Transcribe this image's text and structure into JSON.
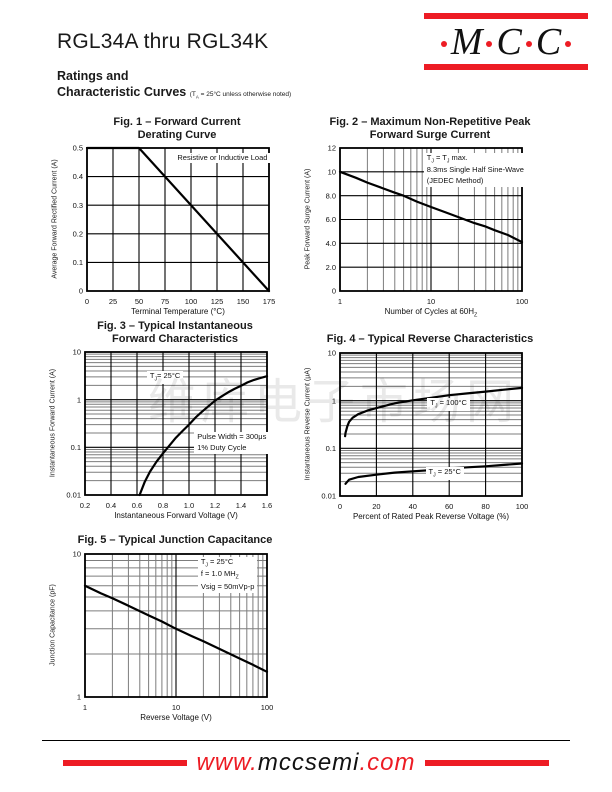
{
  "page": {
    "accent_red": "#ed1c24",
    "watermark": "维库电子市场网"
  },
  "header": {
    "part_range": "RGL34A thru RGL34K",
    "section_line1": "Ratings and",
    "section_line2": "Characteristic Curves",
    "section_note": "(T_A = 25°C unless otherwise noted)",
    "logo_letters": [
      "M",
      "C",
      "C"
    ]
  },
  "footer": {
    "url_www": "www.",
    "url_domain": "mccsemi",
    "url_tld": ".com"
  },
  "chart_data": [
    {
      "id": "fig1-forward-current-derating",
      "type": "line",
      "title_lines": [
        "Fig. 1 – Forward Current",
        "Derating Curve"
      ],
      "xlabel": "Terminal Temperature (°C)",
      "ylabel": "Average Forward Rectified Current (A)",
      "xscale": "linear",
      "yscale": "linear",
      "xlim": [
        0,
        175
      ],
      "ylim": [
        0,
        0.5
      ],
      "xticks": {
        "values": [
          0,
          25,
          50,
          75,
          100,
          125,
          150,
          175
        ],
        "labels": [
          "0",
          "25",
          "50",
          "75",
          "100",
          "125",
          "150",
          "175"
        ]
      },
      "yticks": {
        "values": [
          0,
          0.1,
          0.2,
          0.3,
          0.4,
          0.5
        ],
        "labels": [
          "0",
          "0.1",
          "0.2",
          "0.3",
          "0.4",
          "0.5"
        ]
      },
      "annotations": [
        {
          "lines": [
            "Resistive or Inductive Load"
          ],
          "fx": 0.48,
          "fy": 0.03,
          "align": "left"
        }
      ],
      "series": [
        {
          "name": "derating-curve",
          "points": [
            [
              0,
              0.5
            ],
            [
              50,
              0.5
            ],
            [
              175,
              0
            ]
          ]
        }
      ]
    },
    {
      "id": "fig2-peak-forward-surge-current",
      "type": "line",
      "title_lines": [
        "Fig. 2 – Maximum Non-Repetitive Peak",
        "Forward Surge Current"
      ],
      "xlabel": "Number of Cycles at 60H_Z",
      "ylabel": "Peak Forward Surge Current (A)",
      "xscale": "log",
      "yscale": "linear",
      "xlim": [
        1,
        100
      ],
      "ylim": [
        0,
        12
      ],
      "xticks": {
        "values": [
          1,
          10,
          100
        ],
        "labels": [
          "1",
          "10",
          "100"
        ]
      },
      "yticks": {
        "values": [
          0,
          2,
          4,
          6,
          8,
          10,
          12
        ],
        "labels": [
          "0",
          "2.0",
          "4.0",
          "6.0",
          "8.0",
          "10",
          "12"
        ]
      },
      "annotations": [
        {
          "lines": [
            "T_J = T_J max.",
            "8.3ms Single Half Sine-Wave",
            "(JEDEC Method)"
          ],
          "fx": 0.46,
          "fy": 0.03,
          "align": "left"
        }
      ],
      "series": [
        {
          "name": "surge-current-curve",
          "points": [
            [
              1,
              10
            ],
            [
              1.5,
              9.5
            ],
            [
              2,
              9.1
            ],
            [
              3,
              8.6
            ],
            [
              4,
              8.25
            ],
            [
              5,
              8.0
            ],
            [
              7,
              7.5
            ],
            [
              10,
              7.05
            ],
            [
              15,
              6.55
            ],
            [
              20,
              6.2
            ],
            [
              30,
              5.7
            ],
            [
              40,
              5.4
            ],
            [
              50,
              5.1
            ],
            [
              70,
              4.7
            ],
            [
              100,
              4.1
            ]
          ]
        }
      ]
    },
    {
      "id": "fig3-forward-characteristics",
      "type": "line",
      "title_lines": [
        "Fig. 3 – Typical Instantaneous",
        "Forward Characteristics"
      ],
      "xlabel": "Instantaneous Forward Voltage (V)",
      "ylabel": "Instantaneous Forward Current (A)",
      "xscale": "linear",
      "yscale": "log",
      "xlim": [
        0.2,
        1.6
      ],
      "ylim": [
        0.01,
        10
      ],
      "xticks": {
        "values": [
          0.2,
          0.4,
          0.6,
          0.8,
          1.0,
          1.2,
          1.4,
          1.6
        ],
        "labels": [
          "0.2",
          "0.4",
          "0.6",
          "0.8",
          "1.0",
          "1.2",
          "1.4",
          "1.6"
        ]
      },
      "yticks": {
        "values": [
          0.01,
          0.1,
          1,
          10
        ],
        "labels": [
          "0.01",
          "0.1",
          "1",
          "10"
        ]
      },
      "annotations": [
        {
          "lines": [
            "T_J= 25°C"
          ],
          "fx": 0.34,
          "fy": 0.13,
          "align": "left"
        },
        {
          "lines": [
            "Pulse Width = 300μs",
            "1% Duty Cycle"
          ],
          "fx": 0.6,
          "fy": 0.56,
          "align": "left"
        }
      ],
      "series": [
        {
          "name": "forward-characteristics-curve",
          "points": [
            [
              0.62,
              0.01
            ],
            [
              0.66,
              0.019
            ],
            [
              0.7,
              0.031
            ],
            [
              0.75,
              0.05
            ],
            [
              0.8,
              0.075
            ],
            [
              0.85,
              0.11
            ],
            [
              0.9,
              0.16
            ],
            [
              0.95,
              0.22
            ],
            [
              1.0,
              0.3
            ],
            [
              1.05,
              0.42
            ],
            [
              1.1,
              0.56
            ],
            [
              1.15,
              0.73
            ],
            [
              1.2,
              0.95
            ],
            [
              1.25,
              1.17
            ],
            [
              1.3,
              1.42
            ],
            [
              1.35,
              1.68
            ],
            [
              1.4,
              1.95
            ],
            [
              1.45,
              2.3
            ],
            [
              1.5,
              2.6
            ],
            [
              1.55,
              2.85
            ],
            [
              1.6,
              3.1
            ]
          ]
        }
      ]
    },
    {
      "id": "fig4-reverse-characteristics",
      "type": "line",
      "title_lines": [
        "Fig. 4 – Typical Reverse Characteristics"
      ],
      "xlabel": "Percent of Rated Peak Reverse Voltage (%)",
      "ylabel": "Instantaneous Reverse Current (μA)",
      "xscale": "linear",
      "yscale": "log",
      "xlim": [
        0,
        100
      ],
      "ylim": [
        0.01,
        10
      ],
      "xticks": {
        "values": [
          0,
          20,
          40,
          60,
          80,
          100
        ],
        "labels": [
          "0",
          "20",
          "40",
          "60",
          "80",
          "100"
        ]
      },
      "yticks": {
        "values": [
          0.01,
          0.1,
          1,
          10
        ],
        "labels": [
          "0.01",
          "0.1",
          "1",
          "10"
        ]
      },
      "annotations": [
        {
          "lines": [
            "T_J = 100°C"
          ],
          "fx": 0.48,
          "fy": 0.32,
          "align": "left"
        },
        {
          "lines": [
            "T_J = 25°C"
          ],
          "fx": 0.47,
          "fy": 0.8,
          "align": "left"
        }
      ],
      "series": [
        {
          "name": "reverse-current-100c-curve",
          "points": [
            [
              2.8,
              0.18
            ],
            [
              3,
              0.21
            ],
            [
              4,
              0.29
            ],
            [
              5,
              0.36
            ],
            [
              7,
              0.44
            ],
            [
              10,
              0.52
            ],
            [
              15,
              0.62
            ],
            [
              20,
              0.7
            ],
            [
              30,
              0.88
            ],
            [
              40,
              1.02
            ],
            [
              50,
              1.15
            ],
            [
              60,
              1.3
            ],
            [
              70,
              1.42
            ],
            [
              80,
              1.55
            ],
            [
              90,
              1.7
            ],
            [
              100,
              1.85
            ]
          ]
        },
        {
          "name": "reverse-current-25c-curve",
          "points": [
            [
              3,
              0.018
            ],
            [
              4,
              0.02
            ],
            [
              5,
              0.022
            ],
            [
              10,
              0.025
            ],
            [
              20,
              0.028
            ],
            [
              30,
              0.031
            ],
            [
              40,
              0.033
            ],
            [
              50,
              0.035
            ],
            [
              60,
              0.038
            ],
            [
              70,
              0.04
            ],
            [
              80,
              0.042
            ],
            [
              90,
              0.045
            ],
            [
              100,
              0.048
            ]
          ]
        }
      ]
    },
    {
      "id": "fig5-junction-capacitance",
      "type": "line",
      "title_lines": [
        "Fig. 5 – Typical Junction Capacitance"
      ],
      "xlabel": "Reverse Voltage (V)",
      "ylabel": "Junction Capacitance (pF)",
      "xscale": "log",
      "yscale": "log",
      "xlim": [
        1,
        100
      ],
      "ylim": [
        1,
        10
      ],
      "xticks": {
        "values": [
          1,
          10,
          100
        ],
        "labels": [
          "1",
          "10",
          "100"
        ]
      },
      "yticks": {
        "values": [
          1,
          10
        ],
        "labels": [
          "1",
          "10"
        ]
      },
      "annotations": [
        {
          "lines": [
            "T_J = 25°C",
            "f = 1.0 MH_Z",
            "Vsig = 50mVp-p"
          ],
          "fx": 0.62,
          "fy": 0.02,
          "align": "left"
        }
      ],
      "series": [
        {
          "name": "junction-capacitance-curve",
          "points": [
            [
              1,
              6.0
            ],
            [
              1.5,
              5.3
            ],
            [
              2,
              4.9
            ],
            [
              3,
              4.35
            ],
            [
              5,
              3.72
            ],
            [
              7,
              3.37
            ],
            [
              10,
              3.0
            ],
            [
              15,
              2.66
            ],
            [
              20,
              2.45
            ],
            [
              30,
              2.17
            ],
            [
              50,
              1.86
            ],
            [
              70,
              1.68
            ],
            [
              100,
              1.5
            ]
          ]
        }
      ]
    }
  ]
}
